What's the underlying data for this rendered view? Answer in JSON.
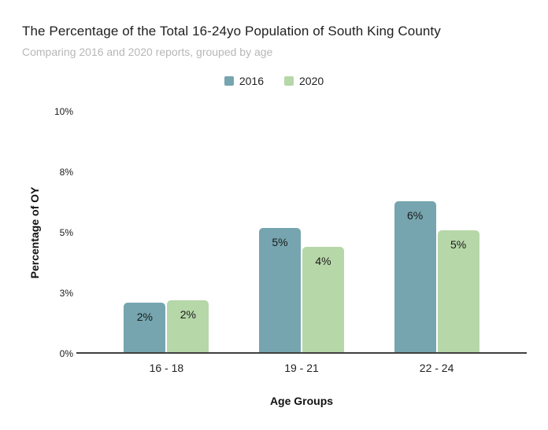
{
  "chart_data": {
    "type": "bar",
    "title": "The Percentage of the Total 16-24yo Population of South King County",
    "subtitle": "Comparing 2016 and 2020 reports, grouped by age",
    "categories": [
      "16 - 18",
      "19 - 21",
      "22 - 24"
    ],
    "series": [
      {
        "name": "2016",
        "color": "#76a5af",
        "values": [
          2.1,
          5.2,
          6.3
        ],
        "bar_labels": [
          "2%",
          "5%",
          "6%"
        ]
      },
      {
        "name": "2020",
        "color": "#b6d7a8",
        "values": [
          2.2,
          4.4,
          5.1
        ],
        "bar_labels": [
          "2%",
          "4%",
          "5%"
        ]
      }
    ],
    "xlabel": "Age Groups",
    "ylabel": "Percentage of OY",
    "ylim": [
      0,
      10
    ],
    "yticks": [
      {
        "value": 0,
        "label": "0%"
      },
      {
        "value": 2.5,
        "label": "3%"
      },
      {
        "value": 5,
        "label": "5%"
      },
      {
        "value": 7.5,
        "label": "8%"
      },
      {
        "value": 10,
        "label": "10%"
      }
    ],
    "grid": false,
    "legend_position": "top-center",
    "background_color": "#ffffff",
    "axis_line_color": "#404040"
  }
}
